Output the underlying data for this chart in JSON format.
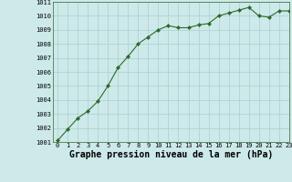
{
  "x": [
    0,
    1,
    2,
    3,
    4,
    5,
    6,
    7,
    8,
    9,
    10,
    11,
    12,
    13,
    14,
    15,
    16,
    17,
    18,
    19,
    20,
    21,
    22,
    23
  ],
  "y": [
    1001.1,
    1001.9,
    1002.7,
    1003.2,
    1003.9,
    1005.0,
    1006.3,
    1007.1,
    1008.0,
    1008.5,
    1009.0,
    1009.3,
    1009.15,
    1009.15,
    1009.35,
    1009.45,
    1010.0,
    1010.2,
    1010.4,
    1010.6,
    1010.0,
    1009.9,
    1010.35,
    1010.35
  ],
  "ylim": [
    1001,
    1011
  ],
  "xlim": [
    -0.5,
    23
  ],
  "yticks": [
    1001,
    1002,
    1003,
    1004,
    1005,
    1006,
    1007,
    1008,
    1009,
    1010,
    1011
  ],
  "xticks": [
    0,
    1,
    2,
    3,
    4,
    5,
    6,
    7,
    8,
    9,
    10,
    11,
    12,
    13,
    14,
    15,
    16,
    17,
    18,
    19,
    20,
    21,
    22,
    23
  ],
  "xlabel": "Graphe pression niveau de la mer (hPa)",
  "line_color": "#2d6a2d",
  "marker": "D",
  "marker_size": 2.0,
  "bg_color": "#cde9e9",
  "grid_color": "#aacfcf",
  "tick_fontsize": 5.0,
  "xlabel_fontsize": 7.0
}
